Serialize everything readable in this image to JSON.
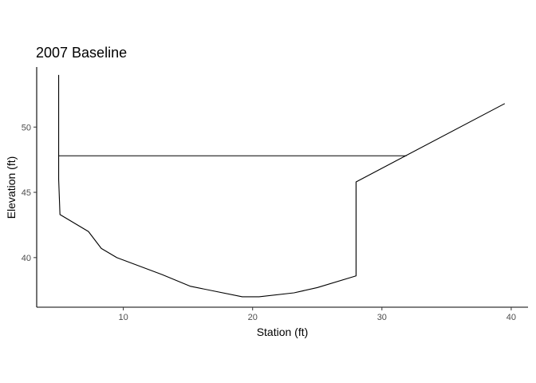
{
  "chart_data": {
    "type": "line",
    "title": "2007 Baseline",
    "xlabel": "Station (ft)",
    "ylabel": "Elevation (ft)",
    "xlim": [
      3.3,
      41.3
    ],
    "ylim": [
      36.2,
      54.6
    ],
    "xticks": [
      10,
      20,
      30,
      40
    ],
    "yticks": [
      40,
      45,
      50
    ],
    "grid": false,
    "legend": "none",
    "series": [
      {
        "role": "cross-section",
        "x": [
          5.0,
          5.0,
          5.1,
          7.3,
          8.3,
          9.5,
          13.0,
          15.2,
          19.2,
          20.5,
          23.2,
          25.0,
          28.0,
          28.0,
          39.5
        ],
        "y": [
          54.0,
          46.0,
          43.3,
          42.0,
          40.7,
          40.0,
          38.7,
          37.8,
          37.0,
          37.0,
          37.3,
          37.7,
          38.6,
          45.8,
          51.8
        ]
      },
      {
        "role": "water-surface",
        "x": [
          5.0,
          31.9
        ],
        "y": [
          47.8,
          47.8
        ]
      }
    ]
  }
}
